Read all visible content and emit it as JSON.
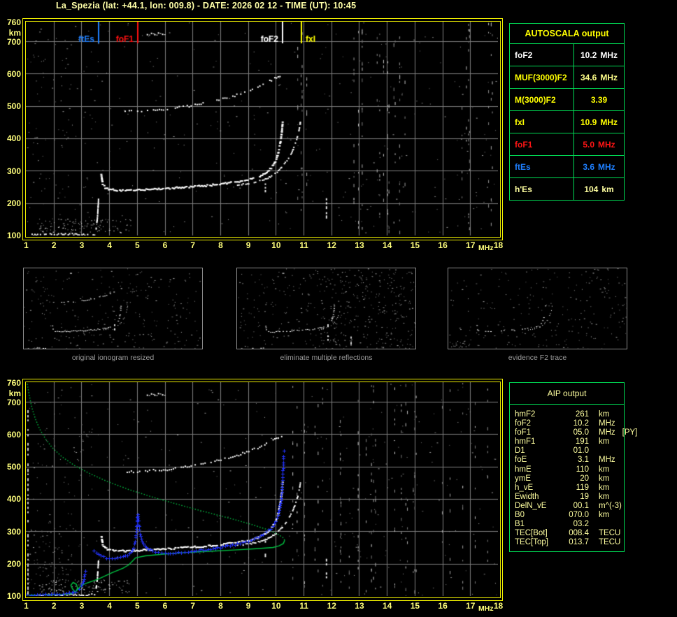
{
  "title": "La_Spezia (lat: +44.1, lon: 009.8) - DATE: 2026 02 12 - TIME (UT): 10:45",
  "autoscala": {
    "header": "AUTOSCALA output",
    "rows": [
      {
        "label": "foF2",
        "value": "10.2",
        "unit": "MHz",
        "label_color": "#ffffff",
        "value_color": "#ffffff"
      },
      {
        "label": "MUF(3000)F2",
        "value": "34.6",
        "unit": "MHz",
        "label_color": "#ffff00",
        "value_color": "#ffff8a"
      },
      {
        "label": "M(3000)F2",
        "value": "3.39",
        "unit": "",
        "label_color": "#ffff00",
        "value_color": "#ffff00"
      },
      {
        "label": "fxI",
        "value": "10.9",
        "unit": "MHz",
        "label_color": "#ffff00",
        "value_color": "#ffff00"
      },
      {
        "label": "foF1",
        "value": "5.0",
        "unit": "MHz",
        "label_color": "#ff1515",
        "value_color": "#ff1515"
      },
      {
        "label": "ftEs",
        "value": "3.6",
        "unit": "MHz",
        "label_color": "#1e7fff",
        "value_color": "#1e7fff"
      },
      {
        "label": "h'Es",
        "value": "104",
        "unit": "km",
        "label_color": "#ffffa0",
        "value_color": "#ffffa0"
      }
    ]
  },
  "aip": {
    "header": "AIP output",
    "rows": [
      {
        "label": "hmF2",
        "value": "261",
        "unit": "km",
        "note": ""
      },
      {
        "label": "foF2",
        "value": "10.2",
        "unit": "MHz",
        "note": ""
      },
      {
        "label": "foF1",
        "value": "05.0",
        "unit": "MHz",
        "note": "[PY]"
      },
      {
        "label": "hmF1",
        "value": "191",
        "unit": "km",
        "note": ""
      },
      {
        "label": "D1",
        "value": "01.0",
        "unit": "",
        "note": ""
      },
      {
        "label": "foE",
        "value": "3.1",
        "unit": "MHz",
        "note": ""
      },
      {
        "label": "hmE",
        "value": "110",
        "unit": "km",
        "note": ""
      },
      {
        "label": "ymE",
        "value": "20",
        "unit": "km",
        "note": ""
      },
      {
        "label": "h_vE",
        "value": "119",
        "unit": "km",
        "note": ""
      },
      {
        "label": "Ewidth",
        "value": "19",
        "unit": "km",
        "note": ""
      },
      {
        "label": "DelN_vE",
        "value": "00.1",
        "unit": "m^(-3)",
        "note": ""
      },
      {
        "label": "B0",
        "value": "070.0",
        "unit": "km",
        "note": ""
      },
      {
        "label": "B1",
        "value": "03.2",
        "unit": "",
        "note": ""
      },
      {
        "label": "TEC[Bot]",
        "value": "008.4",
        "unit": "TECU",
        "note": ""
      },
      {
        "label": "TEC[Top]",
        "value": "013.7",
        "unit": "TECU",
        "note": ""
      }
    ]
  },
  "thumbnails": [
    {
      "caption": "original ionogram resized"
    },
    {
      "caption": "eliminate multiple reflections"
    },
    {
      "caption": "evidence F2 trace"
    }
  ],
  "chart_data": {
    "type": "scatter",
    "title": "ionogram",
    "xlabel": "MHz",
    "ylabel": "km",
    "xlim": [
      1,
      18
    ],
    "ylim": [
      100,
      760
    ],
    "x_ticks": [
      1,
      2,
      3,
      4,
      5,
      6,
      7,
      8,
      9,
      10,
      11,
      12,
      13,
      14,
      15,
      16,
      17,
      18
    ],
    "y_ticks": [
      760,
      700,
      600,
      500,
      400,
      300,
      200,
      100
    ],
    "x_unit": "MHz",
    "y_unit": "km",
    "grid": true,
    "colors": {
      "trace_white": "#ffffff",
      "grid": "#7d7d7d",
      "frame": "#f0f000",
      "profile_green": "#00c040",
      "restored_blue": "#2233ff",
      "axis_text": "#ffff7d"
    },
    "markers": [
      {
        "label": "ftEs",
        "freq": 3.6,
        "color": "#1e7fff",
        "side": "left"
      },
      {
        "label": "foF1",
        "freq": 5.0,
        "color": "#ff1111",
        "side": "left"
      },
      {
        "label": "foF2",
        "freq": 10.23,
        "color": "#ffffff",
        "side": "left"
      },
      {
        "label": "fxI",
        "freq": 10.9,
        "color": "#ffff00",
        "side": "right"
      }
    ],
    "series": {
      "e_layer": [
        [
          1.15,
          104
        ],
        [
          1.6,
          105
        ],
        [
          2.1,
          105
        ],
        [
          2.6,
          106
        ],
        [
          3.0,
          105
        ],
        [
          3.45,
          106
        ]
      ],
      "e_step": [
        [
          3.5,
          122
        ],
        [
          3.52,
          136
        ],
        [
          3.55,
          156
        ],
        [
          3.57,
          182
        ],
        [
          3.59,
          212
        ]
      ],
      "f_trace": [
        [
          3.68,
          290
        ],
        [
          3.73,
          262
        ],
        [
          3.82,
          250
        ],
        [
          3.95,
          245
        ],
        [
          4.15,
          242
        ],
        [
          4.5,
          241
        ],
        [
          5.0,
          243
        ],
        [
          5.5,
          245
        ],
        [
          6.0,
          247
        ],
        [
          6.5,
          250
        ],
        [
          7.0,
          253
        ],
        [
          7.5,
          256
        ],
        [
          8.0,
          261
        ],
        [
          8.5,
          267
        ],
        [
          9.0,
          274
        ],
        [
          9.35,
          283
        ],
        [
          9.6,
          295
        ],
        [
          9.8,
          310
        ],
        [
          9.95,
          330
        ],
        [
          10.05,
          355
        ],
        [
          10.12,
          385
        ],
        [
          10.18,
          420
        ],
        [
          10.21,
          452
        ]
      ],
      "x_trace": [
        [
          8.6,
          258
        ],
        [
          9.0,
          263
        ],
        [
          9.4,
          270
        ],
        [
          9.7,
          280
        ],
        [
          9.95,
          292
        ],
        [
          10.15,
          308
        ],
        [
          10.35,
          330
        ],
        [
          10.55,
          357
        ],
        [
          10.7,
          390
        ],
        [
          10.8,
          420
        ],
        [
          10.86,
          452
        ]
      ],
      "second_hop": [
        [
          4.55,
          486
        ],
        [
          5.0,
          487
        ],
        [
          5.5,
          489
        ],
        [
          6.0,
          492
        ],
        [
          6.5,
          497
        ],
        [
          7.0,
          504
        ],
        [
          7.5,
          512
        ],
        [
          8.0,
          522
        ],
        [
          8.5,
          534
        ],
        [
          9.0,
          548
        ],
        [
          9.4,
          562
        ],
        [
          9.7,
          576
        ],
        [
          10.0,
          590
        ],
        [
          10.25,
          600
        ]
      ],
      "high_cluster": [
        [
          5.35,
          722
        ],
        [
          5.5,
          726
        ],
        [
          5.62,
          722
        ],
        [
          5.75,
          727
        ],
        [
          5.9,
          723
        ]
      ],
      "interference": [
        {
          "freq": 11.8,
          "h1": 140,
          "h2": 215
        },
        {
          "freq": 9.6,
          "h1": 228,
          "h2": 286
        }
      ],
      "green_profile": {
        "upper_dotted": [
          [
            1.05,
            755
          ],
          [
            1.12,
            720
          ],
          [
            1.22,
            680
          ],
          [
            1.35,
            645
          ],
          [
            1.5,
            615
          ],
          [
            1.7,
            586
          ],
          [
            1.95,
            558
          ],
          [
            2.3,
            530
          ],
          [
            2.75,
            503
          ],
          [
            3.3,
            478
          ],
          [
            3.95,
            453
          ],
          [
            4.7,
            429
          ],
          [
            5.5,
            407
          ],
          [
            6.3,
            387
          ],
          [
            7.1,
            368
          ],
          [
            7.9,
            350
          ],
          [
            8.6,
            334
          ],
          [
            9.2,
            319
          ],
          [
            9.7,
            305
          ],
          [
            10.05,
            292
          ],
          [
            10.25,
            281
          ],
          [
            10.32,
            272
          ]
        ],
        "lower_solid": [
          [
            10.32,
            272
          ],
          [
            10.27,
            262
          ],
          [
            10.12,
            255
          ],
          [
            9.9,
            250
          ],
          [
            9.3,
            246
          ],
          [
            8.5,
            242
          ],
          [
            7.6,
            238
          ],
          [
            6.7,
            234
          ],
          [
            5.9,
            229
          ],
          [
            5.3,
            224
          ],
          [
            4.95,
            218
          ],
          [
            4.85,
            209
          ],
          [
            4.7,
            196
          ],
          [
            4.5,
            186
          ],
          [
            4.1,
            172
          ],
          [
            3.6,
            152
          ],
          [
            3.2,
            140
          ],
          [
            3.0,
            133
          ],
          [
            2.88,
            122
          ],
          [
            2.78,
            112
          ],
          [
            2.68,
            122
          ],
          [
            2.62,
            133
          ],
          [
            2.7,
            142
          ],
          [
            2.82,
            136
          ],
          [
            2.86,
            125
          ],
          [
            2.8,
            113
          ],
          [
            2.6,
            107
          ],
          [
            2.3,
            105
          ],
          [
            1.9,
            104
          ],
          [
            1.4,
            103
          ],
          [
            1.02,
            103
          ]
        ]
      },
      "blue_restored": {
        "e_branch": [
          [
            1.02,
            102
          ],
          [
            1.3,
            103
          ],
          [
            1.6,
            104
          ],
          [
            1.9,
            105
          ],
          [
            2.2,
            106
          ],
          [
            2.45,
            108
          ],
          [
            2.65,
            111
          ],
          [
            2.8,
            115
          ],
          [
            2.92,
            122
          ],
          [
            3.0,
            131
          ],
          [
            3.06,
            144
          ],
          [
            3.1,
            160
          ],
          [
            3.13,
            178
          ]
        ],
        "f_branch": [
          [
            3.45,
            240
          ],
          [
            3.55,
            231
          ],
          [
            3.7,
            224
          ],
          [
            3.9,
            219
          ],
          [
            4.1,
            217
          ],
          [
            4.3,
            218
          ],
          [
            4.5,
            221
          ],
          [
            4.65,
            227
          ],
          [
            4.78,
            236
          ],
          [
            4.87,
            250
          ],
          [
            4.93,
            270
          ],
          [
            4.97,
            298
          ],
          [
            5.0,
            330
          ],
          [
            5.02,
            352
          ],
          [
            5.05,
            330
          ],
          [
            5.08,
            305
          ],
          [
            5.12,
            285
          ],
          [
            5.18,
            268
          ],
          [
            5.27,
            254
          ],
          [
            5.4,
            245
          ],
          [
            5.55,
            239
          ],
          [
            5.75,
            235
          ],
          [
            6.0,
            233
          ],
          [
            6.3,
            233
          ],
          [
            6.6,
            235
          ],
          [
            6.95,
            238
          ],
          [
            7.3,
            242
          ],
          [
            7.65,
            246
          ],
          [
            8.0,
            251
          ],
          [
            8.35,
            257
          ],
          [
            8.7,
            264
          ],
          [
            9.0,
            271
          ],
          [
            9.3,
            280
          ],
          [
            9.55,
            290
          ],
          [
            9.75,
            302
          ],
          [
            9.9,
            316
          ],
          [
            10.0,
            332
          ],
          [
            10.08,
            350
          ],
          [
            10.14,
            372
          ],
          [
            10.18,
            396
          ],
          [
            10.21,
            420
          ],
          [
            10.23,
            448
          ],
          [
            10.25,
            478
          ],
          [
            10.26,
            505
          ],
          [
            10.27,
            532
          ]
        ]
      }
    }
  }
}
